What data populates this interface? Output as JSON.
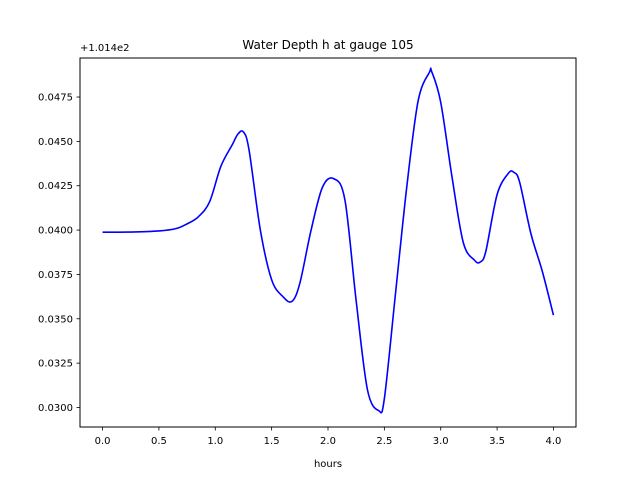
{
  "chart_data": {
    "type": "line",
    "title": "Water Depth h at gauge 105",
    "xlabel": "hours",
    "ylabel": "",
    "offset_label": "+1.014e2",
    "xlim": [
      -0.2,
      4.2
    ],
    "ylim": [
      0.0289,
      0.0497
    ],
    "x_ticks": [
      0.0,
      0.5,
      1.0,
      1.5,
      2.0,
      2.5,
      3.0,
      3.5,
      4.0
    ],
    "x_tick_labels": [
      "0.0",
      "0.5",
      "1.0",
      "1.5",
      "2.0",
      "2.5",
      "3.0",
      "3.5",
      "4.0"
    ],
    "y_ticks": [
      0.03,
      0.0325,
      0.035,
      0.0375,
      0.04,
      0.0425,
      0.045,
      0.0475
    ],
    "y_tick_labels": [
      "0.0300",
      "0.0325",
      "0.0350",
      "0.0375",
      "0.0400",
      "0.0425",
      "0.0450",
      "0.0475"
    ],
    "grid": false,
    "legend": "none",
    "series": [
      {
        "color": "#0000ff",
        "x": [
          0.0,
          0.25,
          0.5,
          0.65,
          0.75,
          0.85,
          0.95,
          1.05,
          1.15,
          1.2,
          1.25,
          1.3,
          1.4,
          1.5,
          1.6,
          1.68,
          1.75,
          1.85,
          1.95,
          2.05,
          2.15,
          2.25,
          2.35,
          2.45,
          2.5,
          2.6,
          2.7,
          2.8,
          2.9,
          2.92,
          3.0,
          3.1,
          3.2,
          3.3,
          3.35,
          3.4,
          3.5,
          3.6,
          3.65,
          3.7,
          3.8,
          3.9,
          4.0
        ],
        "y": [
          0.03988,
          0.03989,
          0.03995,
          0.04008,
          0.04035,
          0.04075,
          0.0416,
          0.0436,
          0.0448,
          0.0454,
          0.04553,
          0.0445,
          0.04,
          0.0372,
          0.03625,
          0.03598,
          0.037,
          0.04,
          0.0424,
          0.0429,
          0.0417,
          0.036,
          0.031,
          0.02982,
          0.0305,
          0.0365,
          0.0425,
          0.0473,
          0.0489,
          0.04893,
          0.0472,
          0.043,
          0.0393,
          0.0383,
          0.0382,
          0.0388,
          0.042,
          0.0432,
          0.04325,
          0.0427,
          0.0398,
          0.0377,
          0.0352
        ]
      }
    ]
  }
}
